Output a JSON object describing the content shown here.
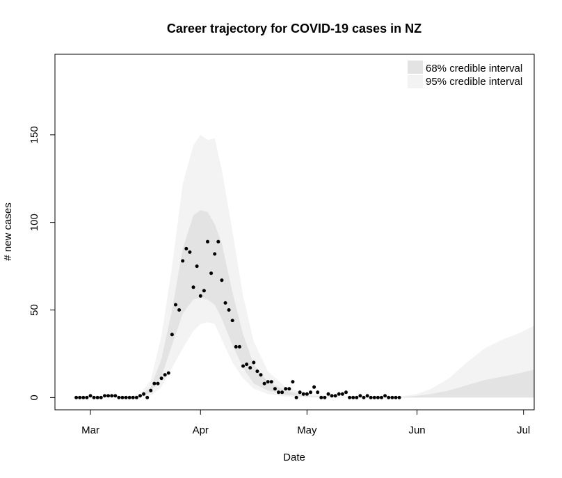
{
  "chart_data": {
    "type": "scatter",
    "title": "Career trajectory for COVID-19 cases in NZ",
    "xlabel": "Date",
    "ylabel": "# new cases",
    "ylim": [
      -7,
      196
    ],
    "xlim": [
      "2020-02-20",
      "2020-07-04"
    ],
    "x_ticks": [
      {
        "label": "Mar",
        "date": "2020-03-01"
      },
      {
        "label": "Apr",
        "date": "2020-04-01"
      },
      {
        "label": "May",
        "date": "2020-05-01"
      },
      {
        "label": "Jun",
        "date": "2020-06-01"
      },
      {
        "label": "Jul",
        "date": "2020-07-01"
      }
    ],
    "y_ticks": [
      0,
      50,
      100,
      150
    ],
    "legend": {
      "position": "top-right",
      "entries": [
        {
          "label": "68% credible interval",
          "color": "#e3e3e3"
        },
        {
          "label": "95% credible interval",
          "color": "#f3f3f3"
        }
      ]
    },
    "colors": {
      "ci68": "#e3e3e3",
      "ci95": "#f3f3f3",
      "points": "#000000"
    },
    "observed": {
      "start_date": "2020-02-26",
      "values": [
        0,
        0,
        0,
        0,
        1,
        0,
        0,
        0,
        1,
        1,
        1,
        1,
        0,
        0,
        0,
        0,
        0,
        0,
        1,
        2,
        0,
        4,
        8,
        8,
        11,
        13,
        14,
        36,
        53,
        50,
        78,
        85,
        83,
        63,
        75,
        58,
        61,
        89,
        71,
        82,
        89,
        67,
        54,
        50,
        44,
        29,
        29,
        18,
        19,
        17,
        20,
        15,
        13,
        8,
        9,
        9,
        5,
        3,
        3,
        5,
        5,
        9,
        0,
        3,
        2,
        2,
        3,
        6,
        3,
        0,
        0,
        2,
        1,
        1,
        2,
        2,
        3,
        0,
        0,
        0,
        1,
        0,
        1,
        0,
        0,
        0,
        0,
        1,
        0,
        0,
        0,
        0
      ]
    },
    "ci_bands": {
      "x": [
        "2020-02-26",
        "2020-03-10",
        "2020-03-15",
        "2020-03-18",
        "2020-03-21",
        "2020-03-24",
        "2020-03-27",
        "2020-03-30",
        "2020-04-01",
        "2020-04-03",
        "2020-04-05",
        "2020-04-07",
        "2020-04-10",
        "2020-04-13",
        "2020-04-16",
        "2020-04-20",
        "2020-04-25",
        "2020-05-01",
        "2020-05-10",
        "2020-05-20",
        "2020-05-27",
        "2020-06-01",
        "2020-06-05",
        "2020-06-10",
        "2020-06-15",
        "2020-06-20",
        "2020-06-25",
        "2020-06-30",
        "2020-07-04"
      ],
      "ci95_upper": [
        0,
        0,
        2,
        10,
        35,
        75,
        122,
        144,
        150,
        147,
        148,
        130,
        95,
        58,
        32,
        15,
        6,
        2,
        0.5,
        0.2,
        0.5,
        2,
        5,
        11,
        20,
        28,
        33,
        37,
        41
      ],
      "ci68_upper": [
        0,
        0,
        1,
        6,
        22,
        50,
        85,
        104,
        107,
        106,
        99,
        88,
        60,
        36,
        19,
        9,
        4,
        1,
        0.3,
        0.1,
        0.2,
        1,
        2,
        4,
        7,
        10,
        12,
        14,
        16
      ],
      "ci68_lower": [
        0,
        0,
        0,
        3,
        12,
        30,
        48,
        56,
        57,
        56,
        53,
        45,
        30,
        17,
        8,
        4,
        1.5,
        0.5,
        0.1,
        0,
        0,
        0,
        0,
        0,
        0,
        0,
        0,
        0,
        0
      ],
      "ci95_lower": [
        0,
        0,
        0,
        1,
        6,
        17,
        28,
        38,
        42,
        43,
        42,
        33,
        20,
        11,
        5,
        2,
        0.5,
        0,
        0,
        0,
        0,
        0,
        0,
        0,
        0,
        0.5,
        1,
        1,
        1.5
      ]
    }
  }
}
